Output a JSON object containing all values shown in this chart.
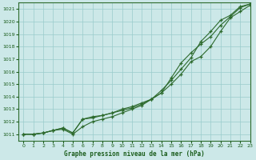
{
  "xlabel": "Graphe pression niveau de la mer (hPa)",
  "background_color": "#cce8e8",
  "grid_color": "#99cccc",
  "line_color": "#2d6a2d",
  "xlim": [
    -0.5,
    23
  ],
  "ylim": [
    1010.5,
    1021.5
  ],
  "yticks": [
    1011,
    1012,
    1013,
    1014,
    1015,
    1016,
    1017,
    1018,
    1019,
    1020,
    1021
  ],
  "xticks": [
    0,
    1,
    2,
    3,
    4,
    5,
    6,
    7,
    8,
    9,
    10,
    11,
    12,
    13,
    14,
    15,
    16,
    17,
    18,
    19,
    20,
    21,
    22,
    23
  ],
  "series1": [
    1011.0,
    1011.0,
    1011.1,
    1011.3,
    1011.4,
    1011.0,
    1011.6,
    1012.0,
    1012.2,
    1012.4,
    1012.7,
    1013.0,
    1013.3,
    1013.8,
    1014.5,
    1015.3,
    1016.2,
    1017.1,
    1018.4,
    1019.2,
    1020.1,
    1020.5,
    1021.2,
    1021.4
  ],
  "series2": [
    1011.0,
    1011.0,
    1011.1,
    1011.3,
    1011.5,
    1011.1,
    1012.2,
    1012.4,
    1012.5,
    1012.7,
    1013.0,
    1013.2,
    1013.5,
    1013.8,
    1014.3,
    1015.0,
    1015.8,
    1016.8,
    1017.2,
    1018.0,
    1019.2,
    1020.3,
    1020.8,
    1021.3
  ],
  "series3": [
    1011.0,
    1011.0,
    1011.1,
    1011.3,
    1011.5,
    1011.1,
    1012.2,
    1012.3,
    1012.5,
    1012.7,
    1012.9,
    1013.1,
    1013.4,
    1013.8,
    1014.3,
    1015.5,
    1016.7,
    1017.5,
    1018.2,
    1018.8,
    1019.7,
    1020.4,
    1021.1,
    1021.4
  ]
}
